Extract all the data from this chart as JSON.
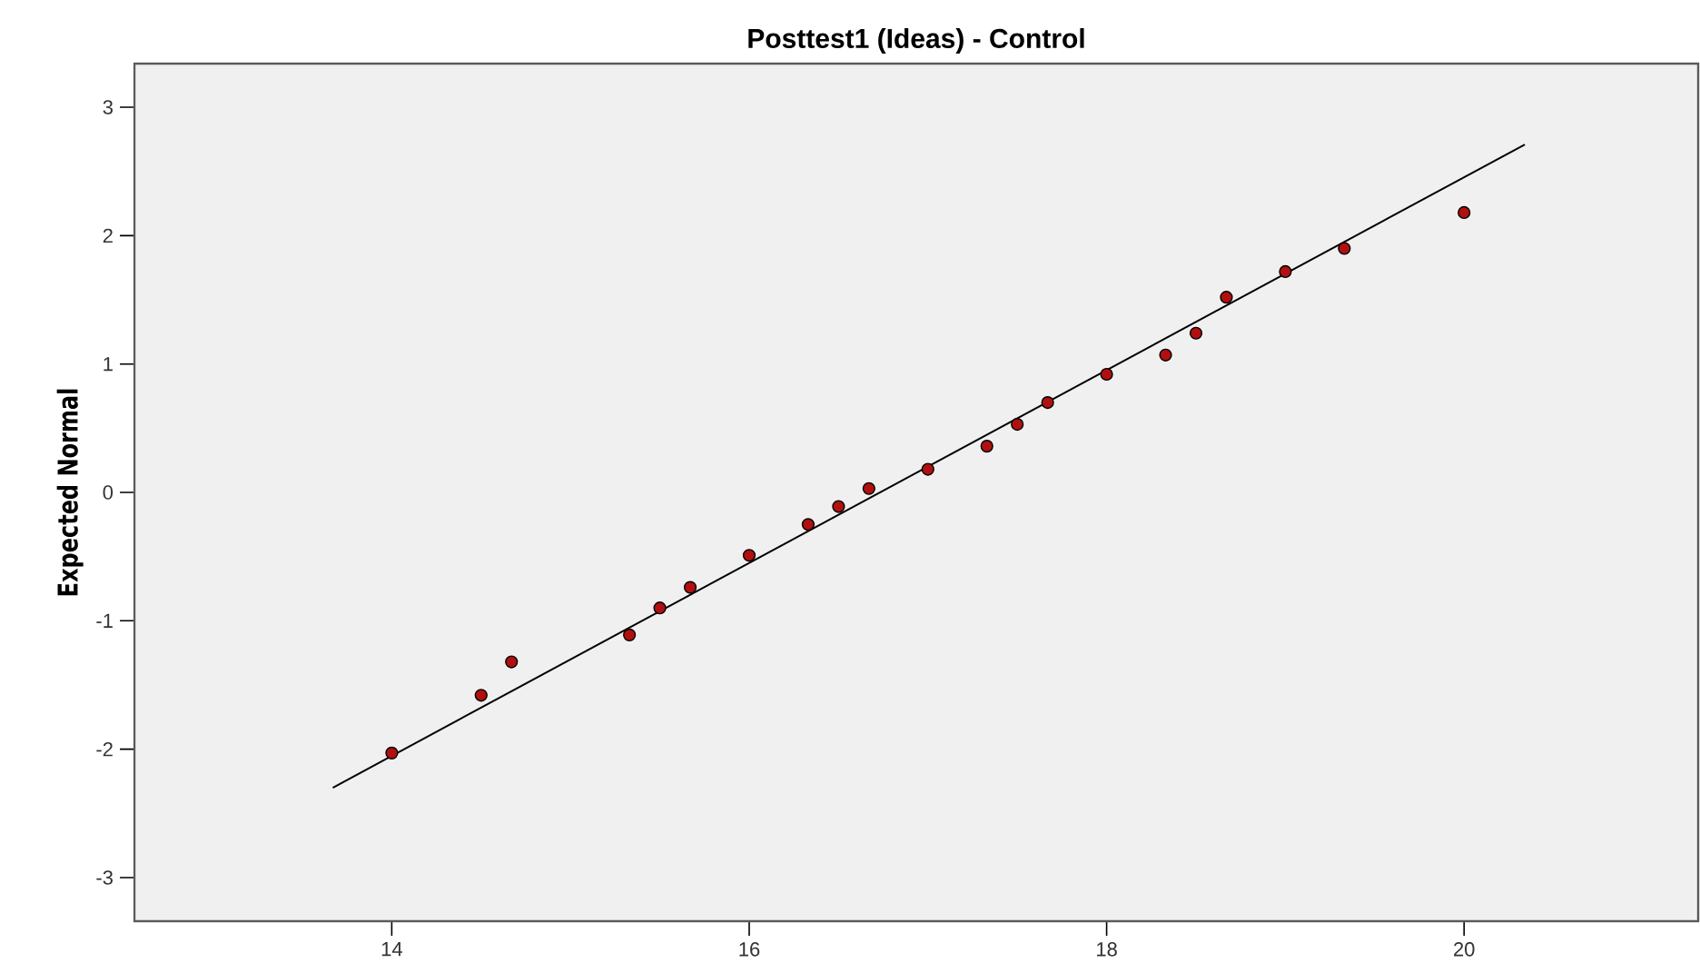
{
  "chart_data": {
    "type": "scatter",
    "title": "Posttest1 (Ideas) - Control",
    "ylabel": "Expected Normal",
    "xlim": [
      12.56,
      21.31
    ],
    "ylim": [
      -3.34,
      3.34
    ],
    "xticks": [
      14,
      16,
      18,
      20
    ],
    "yticks": [
      -3,
      -2,
      -1,
      0,
      1,
      2,
      3
    ],
    "grid": false,
    "series": [
      {
        "type": "scatter",
        "color": "#b01010",
        "marker": "circle",
        "x": [
          14.0,
          14.5,
          14.67,
          15.33,
          15.5,
          15.67,
          16.0,
          16.33,
          16.5,
          16.67,
          17.0,
          17.33,
          17.5,
          17.67,
          18.0,
          18.33,
          18.5,
          18.67,
          19.0,
          19.33,
          20.0
        ],
        "values": [
          -2.03,
          -1.58,
          -1.32,
          -1.11,
          -0.9,
          -0.74,
          -0.49,
          -0.25,
          -0.11,
          0.03,
          0.18,
          0.36,
          0.53,
          0.7,
          0.92,
          1.07,
          1.24,
          1.52,
          1.72,
          1.9,
          2.18
        ]
      },
      {
        "type": "line",
        "color": "#000000",
        "marker": "none",
        "x": [
          13.67,
          20.34
        ],
        "values": [
          -2.3,
          2.71
        ]
      }
    ]
  }
}
